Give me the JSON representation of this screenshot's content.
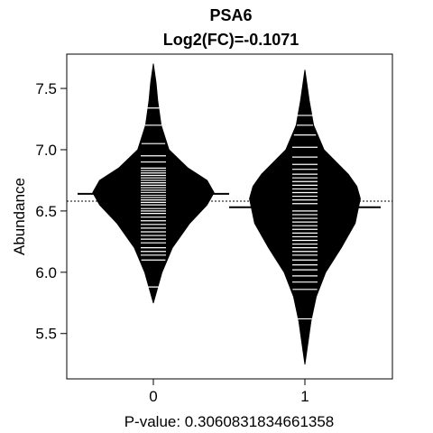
{
  "chart_data": {
    "type": "beanplot",
    "title": "PSA6",
    "subtitle": "Log2(FC)=-0.1071",
    "xlabel": "P-value: 0.3060831834661358",
    "ylabel": "Abundance",
    "categories": [
      "0",
      "1"
    ],
    "ylim": [
      5.13,
      7.78
    ],
    "yticks": [
      "5.5",
      "6.0",
      "6.5",
      "7.0",
      "7.5"
    ],
    "overall_mean": 6.58,
    "groups": [
      {
        "name": "0",
        "mean": 6.64,
        "min": 5.75,
        "max": 7.7,
        "density": [
          [
            5.75,
            0.0
          ],
          [
            5.85,
            0.04
          ],
          [
            6.0,
            0.1
          ],
          [
            6.2,
            0.22
          ],
          [
            6.4,
            0.42
          ],
          [
            6.55,
            0.62
          ],
          [
            6.65,
            0.7
          ],
          [
            6.75,
            0.62
          ],
          [
            6.85,
            0.4
          ],
          [
            7.0,
            0.18
          ],
          [
            7.2,
            0.09
          ],
          [
            7.4,
            0.05
          ],
          [
            7.55,
            0.03
          ],
          [
            7.7,
            0.0
          ]
        ],
        "observations": [
          5.88,
          6.1,
          6.14,
          6.17,
          6.2,
          6.24,
          6.27,
          6.3,
          6.33,
          6.36,
          6.39,
          6.42,
          6.45,
          6.48,
          6.5,
          6.52,
          6.55,
          6.57,
          6.59,
          6.61,
          6.63,
          6.65,
          6.67,
          6.69,
          6.71,
          6.73,
          6.75,
          6.77,
          6.79,
          6.81,
          6.83,
          6.85,
          6.9,
          6.95,
          7.05,
          7.2,
          7.34
        ]
      },
      {
        "name": "1",
        "mean": 6.53,
        "min": 5.25,
        "max": 7.65,
        "density": [
          [
            5.25,
            0.0
          ],
          [
            5.4,
            0.03
          ],
          [
            5.6,
            0.07
          ],
          [
            5.8,
            0.13
          ],
          [
            6.0,
            0.24
          ],
          [
            6.2,
            0.42
          ],
          [
            6.4,
            0.58
          ],
          [
            6.6,
            0.64
          ],
          [
            6.7,
            0.6
          ],
          [
            6.8,
            0.5
          ],
          [
            7.0,
            0.22
          ],
          [
            7.2,
            0.1
          ],
          [
            7.4,
            0.05
          ],
          [
            7.55,
            0.02
          ],
          [
            7.65,
            0.0
          ]
        ],
        "observations": [
          5.62,
          5.86,
          5.92,
          5.97,
          6.02,
          6.06,
          6.1,
          6.14,
          6.17,
          6.2,
          6.23,
          6.26,
          6.29,
          6.32,
          6.35,
          6.38,
          6.41,
          6.44,
          6.47,
          6.5,
          6.53,
          6.56,
          6.59,
          6.62,
          6.65,
          6.68,
          6.71,
          6.74,
          6.77,
          6.8,
          6.84,
          6.88,
          6.94,
          7.02,
          7.12,
          7.2,
          7.28
        ]
      }
    ]
  }
}
